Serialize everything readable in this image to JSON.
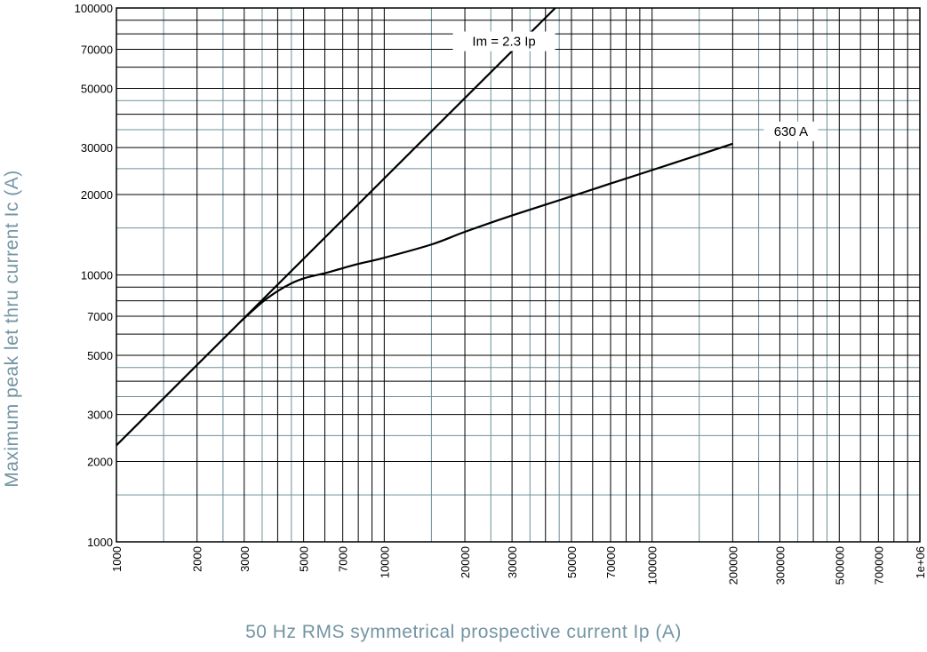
{
  "chart_data": {
    "type": "line",
    "title": "",
    "xlabel": "50 Hz RMS symmetrical prospective current Ip (A)",
    "ylabel": "Maximum peak let thru current Ic (A)",
    "xscale": "log",
    "yscale": "log",
    "xlim": [
      1000,
      1000000
    ],
    "ylim": [
      1000,
      100000
    ],
    "grid": true,
    "x_tick_labels": [
      "1000",
      "2000",
      "3000",
      "5000",
      "7000",
      "10000",
      "20000",
      "30000",
      "50000",
      "70000",
      "100000",
      "200000",
      "300000",
      "500000",
      "700000",
      "1e+06"
    ],
    "y_tick_labels": [
      "100000",
      "70000",
      "50000",
      "30000",
      "20000",
      "10000",
      "7000",
      "5000",
      "3000",
      "2000",
      "1000"
    ],
    "series": [
      {
        "name": "Im = 2.3 Ip",
        "x": [
          1000,
          43500
        ],
        "y": [
          2300,
          100000
        ]
      },
      {
        "name": "630 A",
        "x": [
          2900,
          3500,
          4000,
          4500,
          5000,
          5500,
          6000,
          7000,
          8000,
          10000,
          15000,
          20000,
          30000,
          50000,
          70000,
          100000,
          150000,
          200000
        ],
        "y": [
          6670,
          7900,
          8700,
          9300,
          9700,
          9950,
          10150,
          10600,
          11000,
          11600,
          13000,
          14500,
          16700,
          19700,
          22000,
          24700,
          28200,
          31000
        ]
      }
    ],
    "annotations": [
      {
        "text": "Im = 2.3 Ip",
        "x": 28000,
        "y": 75000
      },
      {
        "text": "630 A",
        "x": 330000,
        "y": 34500
      }
    ]
  },
  "colors": {
    "axis_title": "#7395a3",
    "major_grid": "#000000",
    "minor_grid": "#6d9097",
    "curve": "#000000",
    "tick_label": "#000000"
  }
}
